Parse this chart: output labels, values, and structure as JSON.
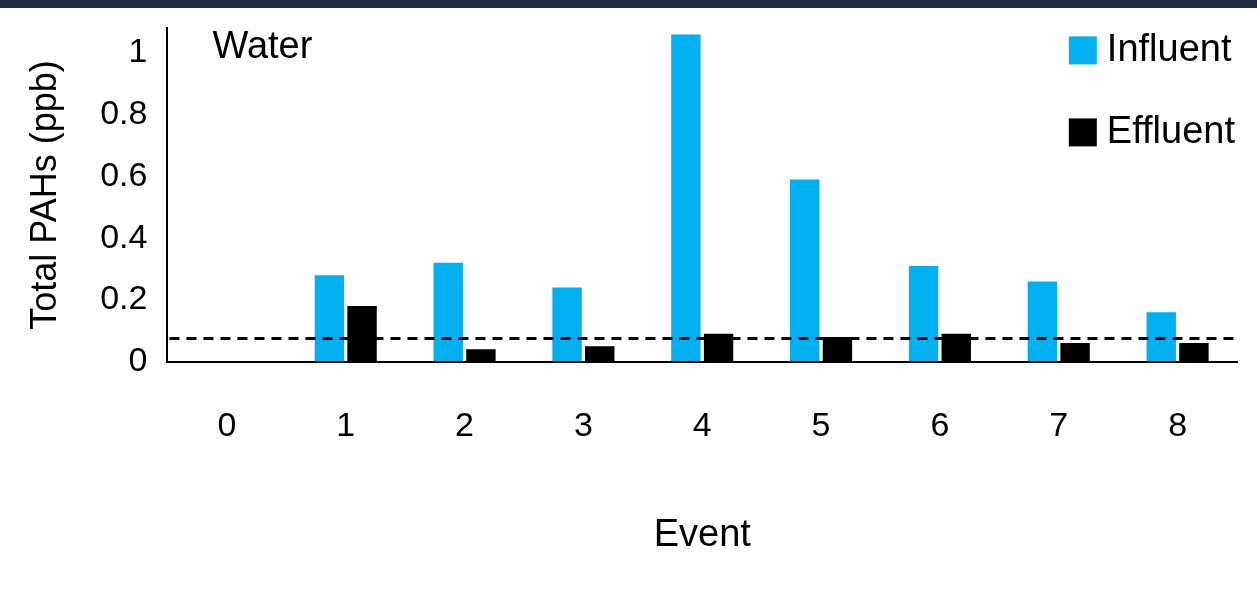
{
  "chart_data": {
    "type": "bar",
    "xlabel": "Event",
    "ylabel": "Total PAHs (ppb)",
    "categories": [
      "0",
      "1",
      "2",
      "3",
      "4",
      "5",
      "6",
      "7",
      "8"
    ],
    "series": [
      {
        "name": "Influent",
        "color": "#00b0f0",
        "values": [
          null,
          0.28,
          0.32,
          0.24,
          1.06,
          0.59,
          0.31,
          0.26,
          0.16
        ]
      },
      {
        "name": "Effluent",
        "color": "#000000",
        "values": [
          null,
          0.18,
          0.04,
          0.05,
          0.09,
          0.08,
          0.09,
          0.06,
          0.06
        ]
      }
    ],
    "ylim": [
      0,
      1.08
    ],
    "yticks": [
      0,
      0.2,
      0.4,
      0.6,
      0.8,
      1
    ],
    "ref_lines": [
      {
        "axis": "y",
        "value": 0.075,
        "line_style": "dashed",
        "color": "#000000"
      }
    ],
    "annotations": [
      "Water"
    ],
    "legend": "top right",
    "grid": false
  }
}
